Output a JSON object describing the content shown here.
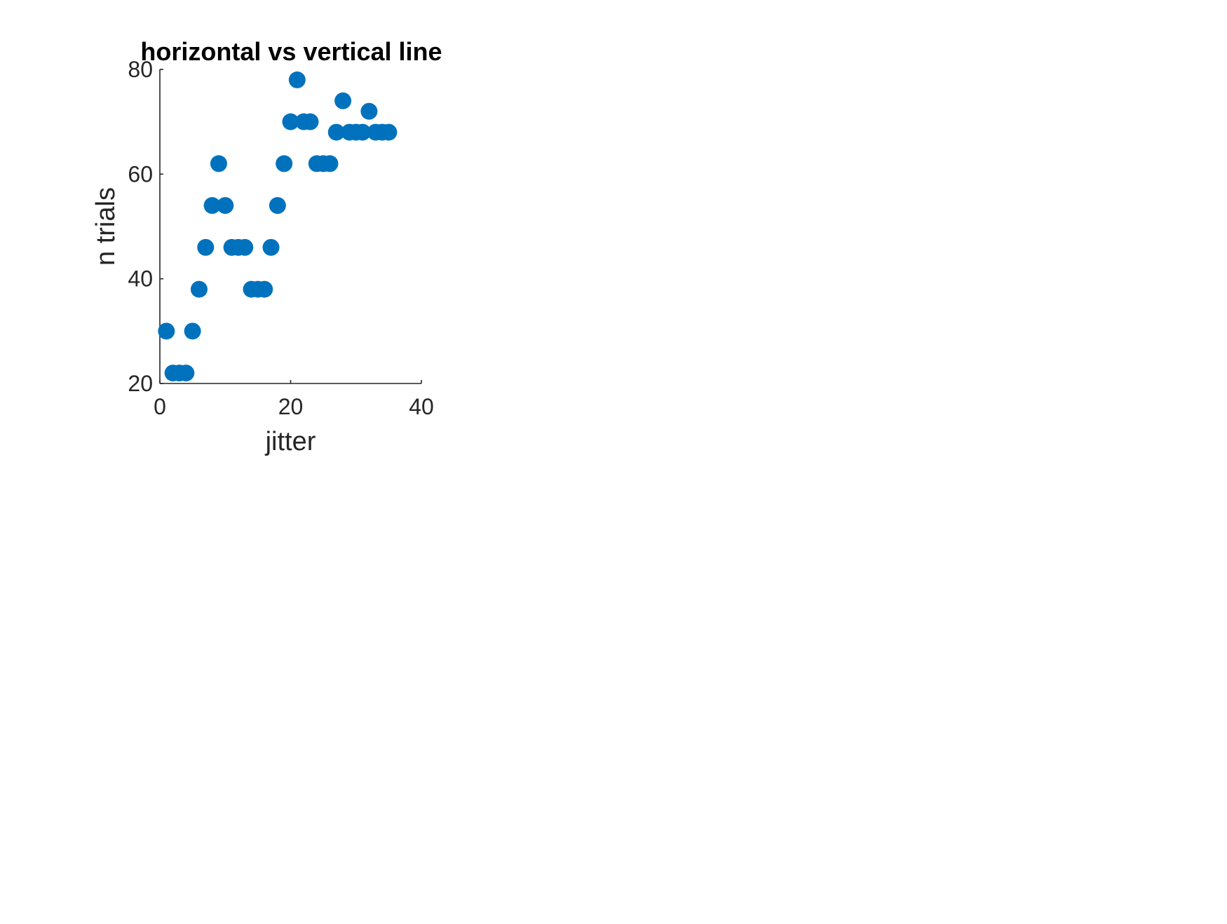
{
  "chart_data": {
    "type": "scatter",
    "title": "horizontal vs vertical line",
    "xlabel": "jitter",
    "ylabel": "n trials",
    "xlim": [
      0,
      40
    ],
    "ylim": [
      20,
      80
    ],
    "xticks": [
      0,
      20,
      40
    ],
    "yticks": [
      20,
      40,
      60,
      80
    ],
    "xtick_labels": [
      "0",
      "20",
      "40"
    ],
    "ytick_labels": [
      "20",
      "40",
      "60",
      "80"
    ],
    "grid": false,
    "marker_color": "#0072BD",
    "axis_color": "#262626",
    "series": [
      {
        "x": [
          1,
          2,
          3,
          4,
          5,
          6,
          7,
          8,
          9,
          10,
          11,
          12,
          13,
          14,
          15,
          16,
          17,
          18,
          19,
          20,
          21,
          22,
          23,
          24,
          25,
          26,
          27,
          28,
          29,
          30,
          31,
          32,
          33,
          34,
          35
        ],
        "y": [
          30,
          22,
          22,
          22,
          30,
          38,
          46,
          54,
          62,
          54,
          46,
          46,
          46,
          38,
          38,
          38,
          46,
          54,
          62,
          70,
          78,
          70,
          70,
          62,
          62,
          62,
          68,
          74,
          68,
          68,
          68,
          72,
          68,
          68,
          68
        ]
      }
    ]
  }
}
